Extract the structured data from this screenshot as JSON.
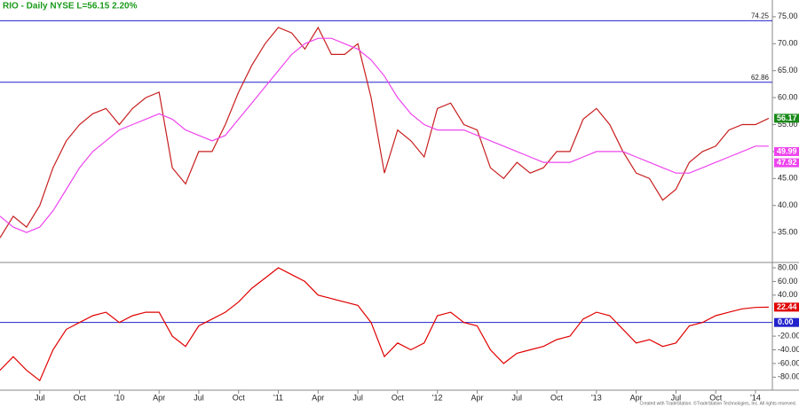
{
  "chart_data": {
    "type": "line",
    "title": "RIO - Daily  NYSE  L=56.15  2.20%",
    "credit": "Created with TradeStation. ©TradeStation Technologies, Inc. All rights reserved.",
    "categories": [
      null,
      null,
      null,
      "Jul",
      null,
      null,
      "Oct",
      null,
      null,
      "'10",
      null,
      null,
      "Apr",
      null,
      null,
      "Jul",
      null,
      null,
      "Oct",
      null,
      null,
      "'11",
      null,
      null,
      "Apr",
      null,
      null,
      "Jul",
      null,
      null,
      "Oct",
      null,
      null,
      "'12",
      null,
      null,
      "Apr",
      null,
      null,
      "Jul",
      null,
      null,
      "Oct",
      null,
      null,
      "'13",
      null,
      null,
      "Apr",
      null,
      null,
      "Jul",
      null,
      null,
      "Oct",
      null,
      null,
      "'14",
      null
    ],
    "series": [
      {
        "color": "#c81e1e",
        "values": [
          34,
          38,
          36,
          40,
          47,
          52,
          55,
          57,
          58,
          55,
          58,
          60,
          61,
          47,
          44,
          50,
          50,
          55,
          61,
          66,
          70,
          73,
          72,
          69,
          73,
          68,
          68,
          70,
          60,
          46,
          54,
          52,
          49,
          58,
          59,
          55,
          54,
          47,
          45,
          48,
          46,
          47,
          50,
          50,
          56,
          58,
          55,
          50,
          46,
          45,
          41,
          43,
          48,
          50,
          51,
          54,
          55,
          55,
          56.17
        ],
        "last_color": "#1a8a1a"
      },
      {
        "color": "#ee44ee",
        "values": [
          38,
          36,
          35,
          36,
          39,
          43,
          47,
          50,
          52,
          54,
          55,
          56,
          57,
          56,
          54,
          53,
          52,
          53,
          56,
          59,
          62,
          65,
          68,
          70,
          71,
          71,
          70,
          69,
          67,
          64,
          60,
          57,
          55,
          54,
          54,
          54,
          53,
          52,
          51,
          50,
          49,
          48,
          48,
          48,
          49,
          50,
          50,
          50,
          49,
          48,
          47,
          46,
          46,
          47,
          48,
          49,
          50,
          51,
          51
        ]
      },
      {
        "color": "#e00000",
        "axis": "y2",
        "values": [
          -70,
          -50,
          -70,
          -85,
          -40,
          -10,
          0,
          10,
          15,
          0,
          10,
          15,
          15,
          -20,
          -35,
          -5,
          5,
          15,
          30,
          50,
          65,
          80,
          70,
          60,
          40,
          35,
          30,
          25,
          0,
          -50,
          -30,
          -40,
          -30,
          10,
          15,
          0,
          -5,
          -40,
          -60,
          -45,
          -40,
          -35,
          -25,
          -20,
          5,
          15,
          10,
          -10,
          -30,
          -25,
          -35,
          -30,
          -5,
          0,
          10,
          15,
          20,
          22,
          22.44
        ],
        "last_color": "#e00000"
      }
    ],
    "band_labels": [
      49.99,
      47.92
    ],
    "band_label_color": "#ee44ee",
    "hlines": [
      74.25,
      62.86
    ],
    "y2_hline": {
      "value": 0,
      "label": "0.00"
    },
    "hline_color": "#2222cc",
    "ylim": [
      29.6,
      78.1
    ],
    "yticks": [
      {
        "value": 35,
        "label": "35.00"
      },
      {
        "value": 40,
        "label": "40.00"
      },
      {
        "value": 45,
        "label": "45.00"
      },
      {
        "value": 50,
        "label": "50.00"
      },
      {
        "value": 55,
        "label": "55.00"
      },
      {
        "value": 60,
        "label": "60.00"
      },
      {
        "value": 65,
        "label": "65.00"
      },
      {
        "value": 70,
        "label": "70.00"
      },
      {
        "value": 75,
        "label": "75.00"
      }
    ],
    "y2lim": [
      -99,
      86.5
    ],
    "y2ticks": [
      {
        "value": 80,
        "label": "80.00"
      },
      {
        "value": 60,
        "label": "60.00"
      },
      {
        "value": 40,
        "label": "40.00"
      },
      {
        "value": -20,
        "label": "-20.00"
      },
      {
        "value": -40,
        "label": "-40.00"
      },
      {
        "value": -60,
        "label": "-60.00"
      },
      {
        "value": -80,
        "label": "-80.00"
      }
    ]
  }
}
